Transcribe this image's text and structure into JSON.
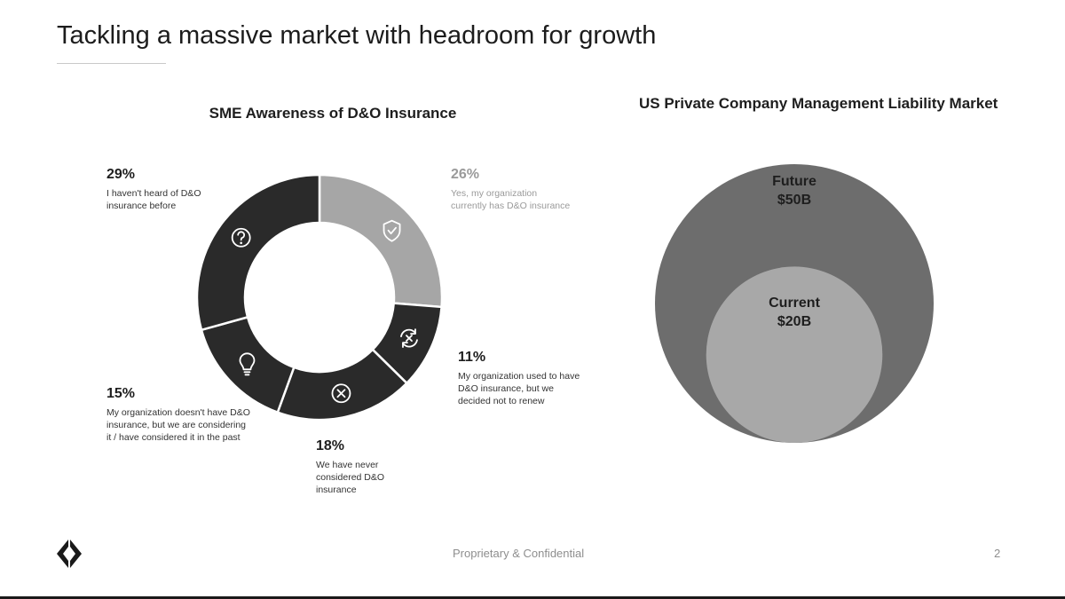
{
  "page": {
    "title": "Tackling a massive market with headroom for growth",
    "footer": "Proprietary & Confidential",
    "page_number": "2"
  },
  "icons": {
    "logo": "brand-logo-icon",
    "question": "question-circle-icon",
    "shield": "shield-check-icon",
    "refresh": "refresh-cancel-icon",
    "bulb": "lightbulb-icon",
    "cancel": "x-circle-icon"
  },
  "chart_data": [
    {
      "type": "pie",
      "title": "SME Awareness of D&O Insurance",
      "slices": [
        {
          "value": 26,
          "label": "26%",
          "description": "Yes, my organization currently has D&O insurance",
          "color": "#a6a6a6"
        },
        {
          "value": 11,
          "label": "11%",
          "description": "My organization used to have D&O insurance, but we decided not to renew",
          "color": "#2a2a2a"
        },
        {
          "value": 18,
          "label": "18%",
          "description": "We have never considered D&O insurance",
          "color": "#2a2a2a"
        },
        {
          "value": 15,
          "label": "15%",
          "description": "My organization doesn't have D&O insurance, but we are considering it / have considered it in the past",
          "color": "#2a2a2a"
        },
        {
          "value": 29,
          "label": "29%",
          "description": "I haven't heard of D&O insurance before",
          "color": "#2a2a2a"
        }
      ]
    },
    {
      "type": "bubble",
      "title": "US Private Company Management Liability Market",
      "bubbles": [
        {
          "name": "Future",
          "value": 50,
          "label": "$50B",
          "color": "#6d6d6d"
        },
        {
          "name": "Current",
          "value": 20,
          "label": "$20B",
          "color": "#a8a8a8"
        }
      ]
    }
  ]
}
